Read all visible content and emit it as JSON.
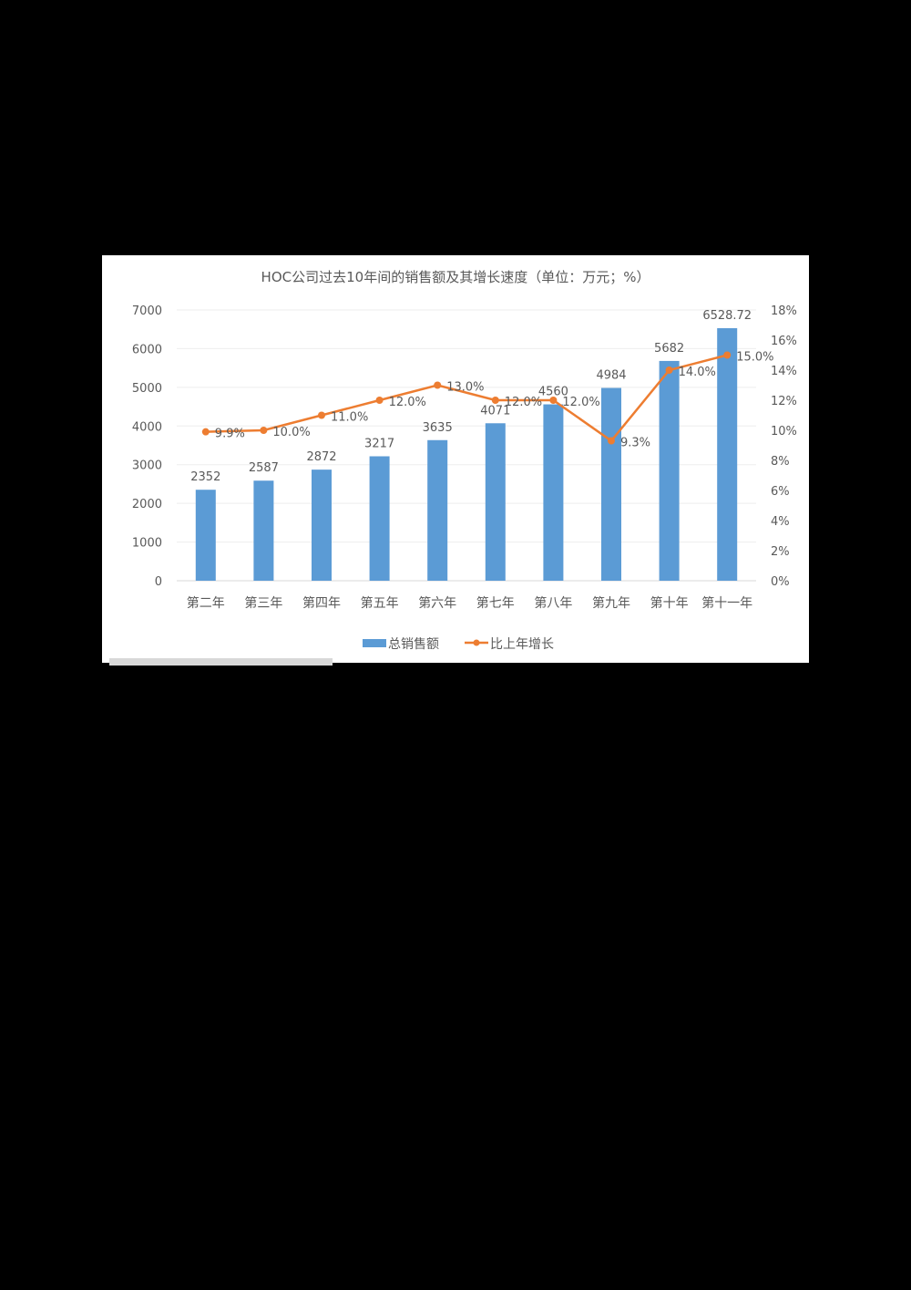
{
  "chart_data": {
    "type": "bar+line",
    "title": "HOC公司过去10年间的销售额及其增长速度（单位：万元；%）",
    "categories": [
      "第二年",
      "第三年",
      "第四年",
      "第五年",
      "第六年",
      "第七年",
      "第八年",
      "第九年",
      "第十年",
      "第十一年"
    ],
    "series": [
      {
        "name": "总销售额",
        "type": "bar",
        "axis": "left",
        "color": "#5b9bd5",
        "values": [
          2352,
          2587,
          2872,
          3217,
          3635,
          4071,
          4560,
          4984,
          5682,
          6528.72
        ],
        "labels": [
          "2352",
          "2587",
          "2872",
          "3217",
          "3635",
          "4071",
          "4560",
          "4984",
          "5682",
          "6528.72"
        ]
      },
      {
        "name": "比上年增长",
        "type": "line",
        "axis": "right",
        "color": "#ed7d31",
        "values": [
          9.9,
          10.0,
          11.0,
          12.0,
          13.0,
          12.0,
          12.0,
          9.3,
          14.0,
          15.0
        ],
        "labels": [
          "9.9%",
          "10.0%",
          "11.0%",
          "12.0%",
          "13.0%",
          "12.0%",
          "12.0%",
          "9.3%",
          "14.0%",
          "15.0%"
        ]
      }
    ],
    "ylim_left": [
      0,
      7000
    ],
    "yticks_left": [
      "0",
      "1000",
      "2000",
      "3000",
      "4000",
      "5000",
      "6000",
      "7000"
    ],
    "ylim_right": [
      0,
      18
    ],
    "yticks_right": [
      "0%",
      "2%",
      "4%",
      "6%",
      "8%",
      "10%",
      "12%",
      "14%",
      "16%",
      "18%"
    ],
    "grid": true,
    "legend_position": "bottom",
    "legend": [
      "总销售额",
      "比上年增长"
    ]
  }
}
